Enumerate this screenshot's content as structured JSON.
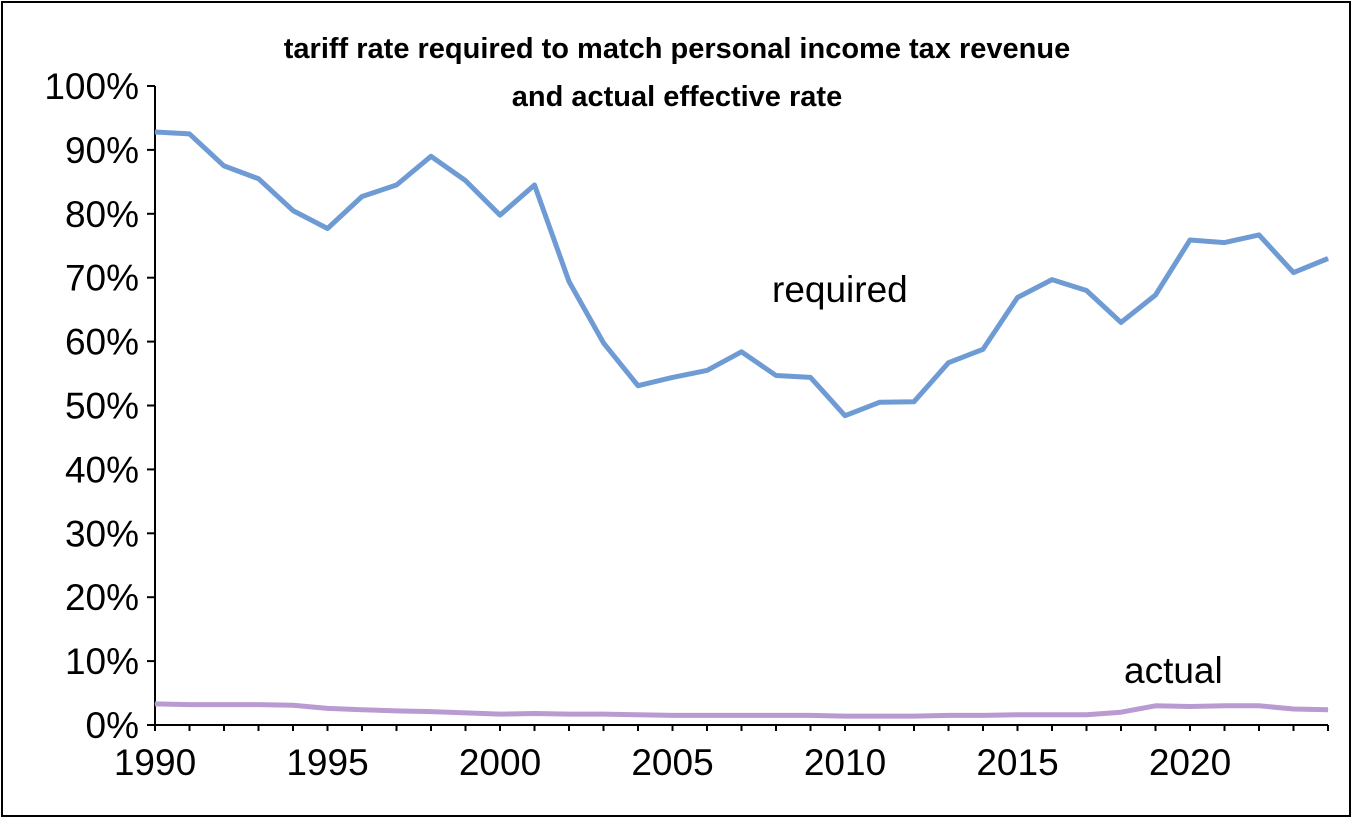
{
  "chart_data": {
    "type": "line",
    "title": [
      "tariff rate required to match personal income tax revenue",
      "and actual effective rate"
    ],
    "xlabel": "",
    "ylabel": "",
    "xlim": [
      1990,
      2024
    ],
    "ylim": [
      0,
      100
    ],
    "grid": false,
    "x_ticks": [
      "1990",
      "1995",
      "2000",
      "2005",
      "2010",
      "2015",
      "2020"
    ],
    "y_ticks": [
      "0%",
      "10%",
      "20%",
      "30%",
      "40%",
      "50%",
      "60%",
      "70%",
      "80%",
      "90%",
      "100%"
    ],
    "x": [
      1990,
      1991,
      1992,
      1993,
      1994,
      1995,
      1996,
      1997,
      1998,
      1999,
      2000,
      2001,
      2002,
      2003,
      2004,
      2005,
      2006,
      2007,
      2008,
      2009,
      2010,
      2011,
      2012,
      2013,
      2014,
      2015,
      2016,
      2017,
      2018,
      2019,
      2020,
      2021,
      2022,
      2023,
      2024
    ],
    "series": [
      {
        "name": "required",
        "label": "required",
        "color": "#6f9bd4",
        "values": [
          92.8,
          92.5,
          87.5,
          85.5,
          80.5,
          77.7,
          82.7,
          84.5,
          89.0,
          85.2,
          79.8,
          84.5,
          69.4,
          59.8,
          53.1,
          54.4,
          55.5,
          58.4,
          54.7,
          54.4,
          48.4,
          50.5,
          50.6,
          56.7,
          58.8,
          66.9,
          69.7,
          68.0,
          63.0,
          67.3,
          75.9,
          75.5,
          76.7,
          70.8,
          73.0
        ]
      },
      {
        "name": "actual",
        "label": "actual",
        "color": "#b99bd2",
        "values": [
          3.3,
          3.2,
          3.2,
          3.2,
          3.1,
          2.6,
          2.4,
          2.2,
          2.1,
          1.9,
          1.7,
          1.8,
          1.7,
          1.7,
          1.6,
          1.5,
          1.5,
          1.5,
          1.5,
          1.5,
          1.4,
          1.4,
          1.4,
          1.5,
          1.5,
          1.6,
          1.6,
          1.6,
          2.0,
          3.0,
          2.9,
          3.0,
          3.0,
          2.5,
          2.4
        ]
      }
    ]
  }
}
